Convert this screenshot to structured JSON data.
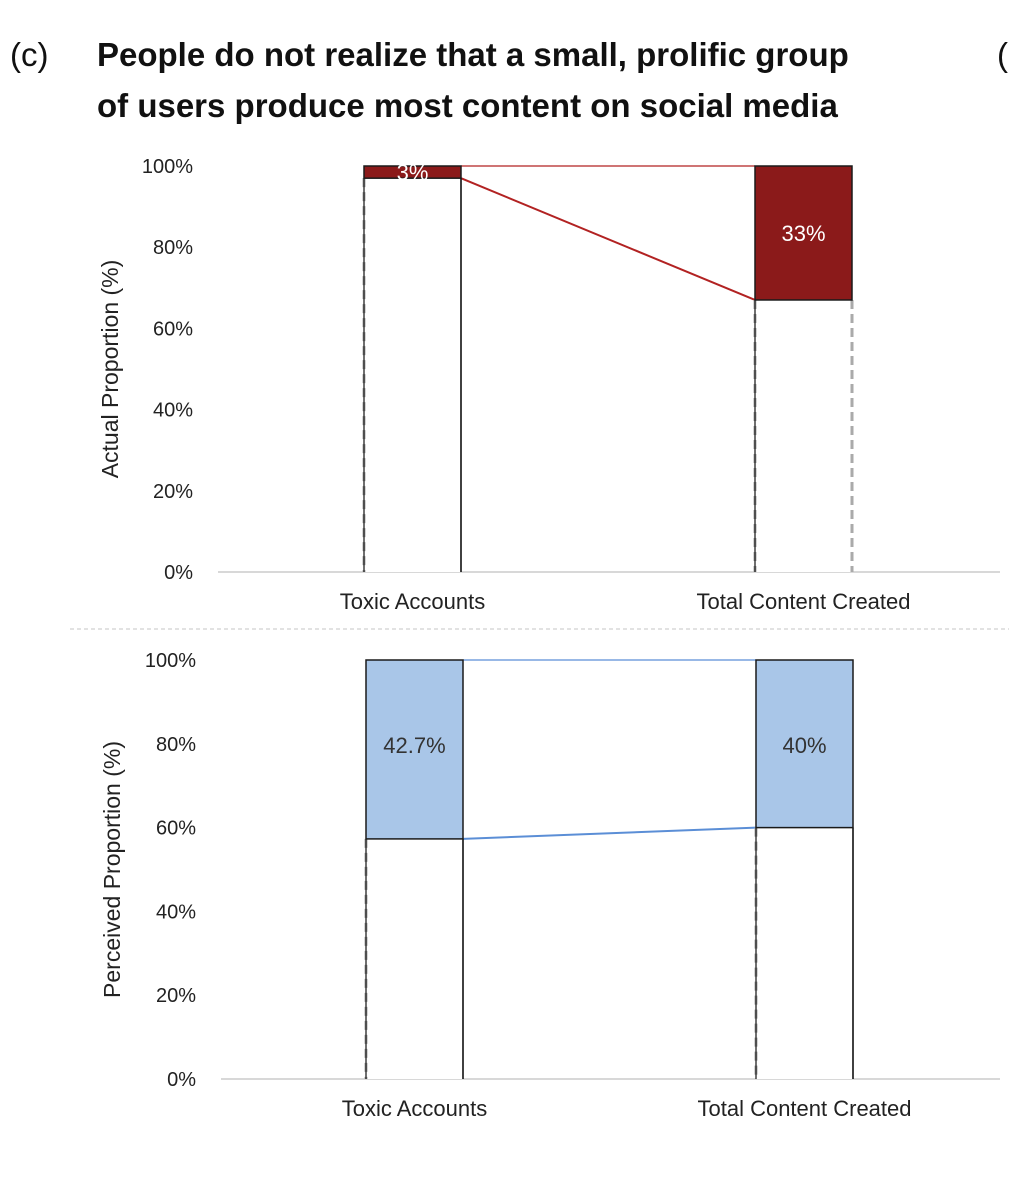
{
  "figure": {
    "panel_label": "(c)",
    "title_line1": "People do not realize that a small, prolific group",
    "title_line2": "of users produce most content on social media",
    "edge_char": "("
  },
  "colors": {
    "actual_fill": "#8b1a1a",
    "actual_line": "#b22222",
    "perceived_fill": "#a9c6e8",
    "perceived_line": "#5b8ed6",
    "axis": "#cccccc",
    "text": "#222222"
  },
  "chart_data": [
    {
      "type": "bar",
      "stacked": true,
      "ylabel": "Actual Proportion (%)",
      "categories": [
        "Toxic Accounts",
        "Total Content Created"
      ],
      "ylim": [
        0,
        100
      ],
      "yticks": [
        "0%",
        "20%",
        "40%",
        "60%",
        "80%",
        "100%"
      ],
      "series": [
        {
          "values": [
            97,
            67
          ]
        },
        {
          "values": [
            3,
            33
          ],
          "labels": [
            "3%",
            "33%"
          ]
        }
      ],
      "connectors": true,
      "grid": false
    },
    {
      "type": "bar",
      "stacked": true,
      "ylabel": "Perceived Proportion (%)",
      "categories": [
        "Toxic Accounts",
        "Total Content Created"
      ],
      "ylim": [
        0,
        100
      ],
      "yticks": [
        "0%",
        "20%",
        "40%",
        "60%",
        "80%",
        "100%"
      ],
      "series": [
        {
          "values": [
            57.3,
            60
          ]
        },
        {
          "values": [
            42.7,
            40
          ],
          "labels": [
            "42.7%",
            "40%"
          ]
        }
      ],
      "connectors": true,
      "grid": false
    }
  ]
}
